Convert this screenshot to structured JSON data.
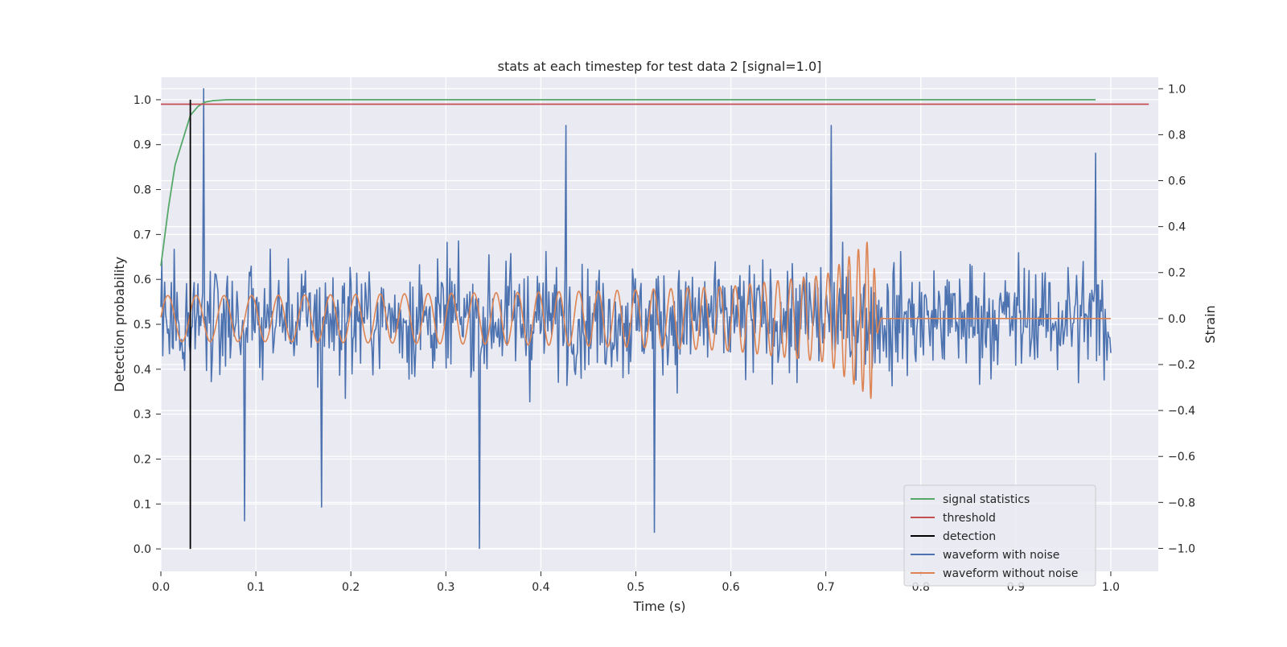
{
  "chart_data": {
    "type": "line",
    "title": "stats at each timestep for test data 2 [signal=1.0]",
    "xlabel": "Time (s)",
    "ylabel_left": "Detection probability",
    "ylabel_right": "Strain",
    "xlim": [
      0.0,
      1.05
    ],
    "ylim_left": [
      -0.05,
      1.05
    ],
    "ylim_right": [
      -1.1,
      1.05
    ],
    "x_ticks": [
      "0.0",
      "0.1",
      "0.2",
      "0.3",
      "0.4",
      "0.5",
      "0.6",
      "0.7",
      "0.8",
      "0.9",
      "1.0"
    ],
    "y_ticks_left": [
      "0.0",
      "0.1",
      "0.2",
      "0.3",
      "0.4",
      "0.5",
      "0.6",
      "0.7",
      "0.8",
      "0.9",
      "1.0"
    ],
    "y_ticks_right": [
      "−1.0",
      "−0.8",
      "−0.6",
      "−0.4",
      "−0.2",
      "0.0",
      "0.2",
      "0.4",
      "0.6",
      "0.8",
      "1.0"
    ],
    "grid": true,
    "legend_position": "bottom-right",
    "legend": [
      {
        "label": "signal statistics",
        "color": "#55a868"
      },
      {
        "label": "threshold",
        "color": "#c44e52"
      },
      {
        "label": "detection",
        "color": "#000000"
      },
      {
        "label": "waveform with noise",
        "color": "#4c72b0"
      },
      {
        "label": "waveform without noise",
        "color": "#dd8452"
      }
    ],
    "series": [
      {
        "name": "signal statistics",
        "axis": "left",
        "color": "#55a868",
        "x": [
          0.0,
          0.008,
          0.015,
          0.023,
          0.031,
          0.039,
          0.047,
          0.055,
          0.062,
          0.07,
          0.1,
          0.2,
          0.4,
          0.6,
          0.8,
          0.984
        ],
        "y": [
          0.63,
          0.76,
          0.855,
          0.91,
          0.965,
          0.985,
          0.995,
          0.998,
          0.999,
          1.0,
          1.0,
          1.0,
          1.0,
          1.0,
          1.0,
          1.0
        ]
      },
      {
        "name": "threshold",
        "axis": "left",
        "color": "#c44e52",
        "x": [
          0.0,
          1.04
        ],
        "y": [
          0.99,
          0.99
        ]
      },
      {
        "name": "detection",
        "axis": "left",
        "color": "#000000",
        "x": [
          0.031,
          0.031
        ],
        "y": [
          0.0,
          1.0
        ]
      },
      {
        "name": "waveform with noise",
        "axis": "right",
        "color": "#4c72b0",
        "x": [
          0.0,
          1.0
        ],
        "y": [
          0.05,
          -0.15
        ],
        "num_points": 1000,
        "amplitude_range": [
          -1.0,
          1.0
        ],
        "peaks": [
          {
            "x": 0.045,
            "y": 1.0
          },
          {
            "x": 0.335,
            "y": -1.0
          },
          {
            "x": 0.52,
            "y": -0.93
          },
          {
            "x": 0.426,
            "y": 0.84
          },
          {
            "x": 0.706,
            "y": 0.84
          },
          {
            "x": 0.088,
            "y": -0.88
          },
          {
            "x": 0.169,
            "y": -0.82
          },
          {
            "x": 0.984,
            "y": 0.72
          }
        ]
      },
      {
        "name": "waveform without noise",
        "axis": "right",
        "color": "#dd8452",
        "x": [
          0.0,
          0.1,
          0.2,
          0.3,
          0.4,
          0.5,
          0.6,
          0.7,
          0.74,
          0.748,
          0.755,
          0.76,
          0.8,
          0.9,
          1.0
        ],
        "envelope": [
          0.1,
          0.1,
          0.105,
          0.11,
          0.115,
          0.125,
          0.14,
          0.19,
          0.32,
          0.35,
          0.05,
          0.0,
          0.0,
          0.0,
          0.0
        ],
        "frequency_hz": [
          33,
          35,
          38,
          41,
          46,
          52,
          62,
          80,
          110,
          130,
          130,
          0,
          0,
          0,
          0
        ]
      }
    ]
  }
}
